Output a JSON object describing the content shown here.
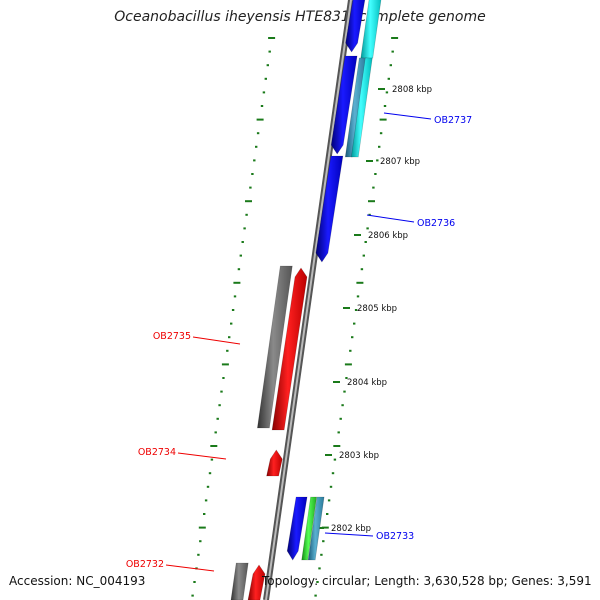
{
  "title": "Oceanobacillus iheyensis HTE831, complete genome",
  "footer": {
    "accession": "Accession: NC_004193",
    "summary": "Topology: circular; Length: 3,630,528 bp; Genes: 3,591"
  },
  "colors": {
    "forward_strand": "#0000ee",
    "reverse_strand": "#ee0000",
    "pseudo_gene": "#777777",
    "rna_gene": "#00e5e5",
    "misc_feature": "#3aa0c8",
    "green_feature": "#33cc33",
    "ruler": "#1a7a1a"
  },
  "scale_labels": [
    {
      "text": "2808 kbp",
      "kbp": 2808
    },
    {
      "text": "2807 kbp",
      "kbp": 2807
    },
    {
      "text": "2806 kbp",
      "kbp": 2806
    },
    {
      "text": "2805 kbp",
      "kbp": 2805
    },
    {
      "text": "2804 kbp",
      "kbp": 2804
    },
    {
      "text": "2803 kbp",
      "kbp": 2803
    },
    {
      "text": "2802 kbp",
      "kbp": 2802
    }
  ],
  "gene_labels": [
    {
      "text": "OB2737",
      "strand": "forward"
    },
    {
      "text": "OB2736",
      "strand": "forward"
    },
    {
      "text": "OB2735",
      "strand": "reverse"
    },
    {
      "text": "OB2734",
      "strand": "reverse"
    },
    {
      "text": "OB2733",
      "strand": "forward"
    },
    {
      "text": "OB2732",
      "strand": "reverse"
    }
  ]
}
